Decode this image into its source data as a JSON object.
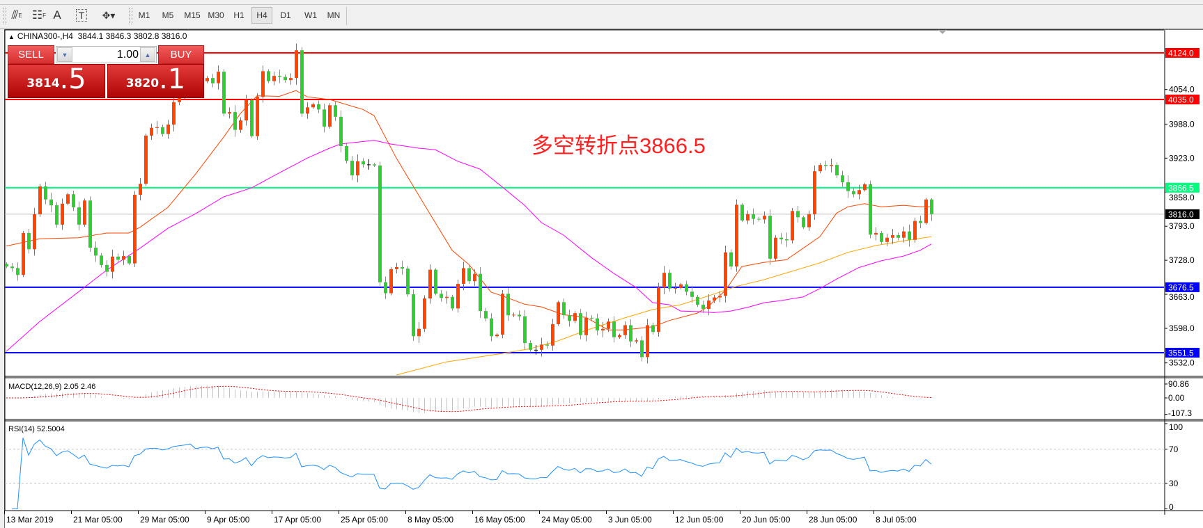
{
  "toolbar": {
    "tools": [
      {
        "icon": "fibonacci-expansion-icon",
        "glyph": "⫻",
        "sub": "E"
      },
      {
        "icon": "fibonacci-fan-icon",
        "glyph": "☷",
        "sub": "F"
      },
      {
        "icon": "text-icon",
        "glyph": "A",
        "sub": ""
      },
      {
        "icon": "text-label-icon",
        "glyph": "T",
        "sub": ""
      },
      {
        "icon": "arrows-dropdown-icon",
        "glyph": "✥▾",
        "sub": ""
      }
    ],
    "timeframes": [
      "M1",
      "M5",
      "M15",
      "M30",
      "H1",
      "H4",
      "D1",
      "W1",
      "MN"
    ],
    "active_timeframe": "H4"
  },
  "chart": {
    "symbol_line": "CHINA300-,H4  3844.1 3846.3 3802.8 3816.0"
  },
  "trade_panel": {
    "sell_label": "SELL",
    "buy_label": "BUY",
    "volume": "1.00",
    "sell_price_main": "3814",
    "sell_price_frac": ".5",
    "buy_price_main": "3820",
    "buy_price_frac": ".1"
  },
  "annotation": "多空转折点3866.5",
  "chart_data": {
    "type": "candlestick",
    "symbol": "CHINA300-",
    "timeframe": "H4",
    "colors": {
      "up": "#ff4500",
      "down": "#32cd32",
      "unchanged": "#000000"
    },
    "closes": [
      3716,
      3713,
      3700,
      3780,
      3749,
      3816,
      3869,
      3844,
      3833,
      3796,
      3836,
      3854,
      3829,
      3796,
      3842,
      3752,
      3737,
      3719,
      3706,
      3735,
      3729,
      3736,
      3722,
      3853,
      3874,
      3966,
      3981,
      3982,
      3969,
      3987,
      4030,
      4045,
      4060,
      4080,
      4050,
      4070,
      4076,
      4066,
      4088,
      4008,
      4011,
      3977,
      3995,
      4034,
      3965,
      4040,
      4089,
      4070,
      4080,
      4078,
      4072,
      4076,
      4129,
      4008,
      4020,
      4026,
      4016,
      3983,
      4024,
      4002,
      3946,
      3918,
      3890,
      3917,
      3911,
      3911,
      3909,
      3686,
      3665,
      3711,
      3715,
      3712,
      3663,
      3583,
      3597,
      3655,
      3710,
      3664,
      3656,
      3658,
      3636,
      3683,
      3713,
      3688,
      3702,
      3631,
      3617,
      3583,
      3586,
      3664,
      3623,
      3624,
      3621,
      3570,
      3557,
      3557,
      3567,
      3565,
      3606,
      3648,
      3623,
      3612,
      3627,
      3585,
      3618,
      3617,
      3594,
      3597,
      3611,
      3581,
      3585,
      3604,
      3573,
      3575,
      3543,
      3604,
      3591,
      3676,
      3704,
      3674,
      3675,
      3682,
      3668,
      3658,
      3643,
      3635,
      3651,
      3657,
      3660,
      3743,
      3716,
      3834,
      3804,
      3816,
      3807,
      3806,
      3813,
      3731,
      3771,
      3768,
      3766,
      3822,
      3810,
      3791,
      3816,
      3898,
      3910,
      3908,
      3910,
      3890,
      3877,
      3860,
      3854,
      3862,
      3873,
      3777,
      3780,
      3763,
      3771,
      3776,
      3771,
      3783,
      3767,
      3803,
      3799,
      3844,
      3816
    ],
    "last_bar": {
      "open": 3844.1,
      "high": 3846.3,
      "low": 3802.8,
      "close": 3816.0
    },
    "moving_averages": [
      {
        "color": "#ff4500",
        "points": [
          [
            0,
            3755
          ],
          [
            6,
            3769
          ],
          [
            13,
            3771
          ],
          [
            18,
            3780
          ],
          [
            22,
            3780
          ],
          [
            24,
            3791
          ],
          [
            29,
            3829
          ],
          [
            34,
            3893
          ],
          [
            39,
            3963
          ],
          [
            42,
            4008
          ],
          [
            45,
            4042
          ],
          [
            49,
            4041
          ],
          [
            52,
            4052
          ],
          [
            54,
            4040
          ],
          [
            58,
            4035
          ],
          [
            64,
            4016
          ],
          [
            66,
            4004
          ],
          [
            70,
            3923
          ],
          [
            76,
            3817
          ],
          [
            80,
            3747
          ],
          [
            83,
            3720
          ],
          [
            87,
            3667
          ],
          [
            89,
            3660
          ],
          [
            93,
            3644
          ],
          [
            96,
            3639
          ],
          [
            100,
            3624
          ],
          [
            104,
            3619
          ],
          [
            108,
            3595
          ],
          [
            111,
            3595
          ],
          [
            116,
            3601
          ],
          [
            119,
            3613
          ],
          [
            124,
            3627
          ],
          [
            126,
            3640
          ],
          [
            129,
            3670
          ],
          [
            132,
            3716
          ],
          [
            136,
            3724
          ],
          [
            140,
            3729
          ],
          [
            143,
            3751
          ],
          [
            146,
            3773
          ],
          [
            149,
            3818
          ],
          [
            151,
            3830
          ],
          [
            154,
            3836
          ],
          [
            157,
            3830
          ],
          [
            161,
            3833
          ],
          [
            164,
            3830
          ],
          [
            166,
            3830
          ]
        ]
      },
      {
        "color": "#ff00ff",
        "points": [
          [
            0,
            3554
          ],
          [
            6,
            3611
          ],
          [
            13,
            3668
          ],
          [
            18,
            3709
          ],
          [
            24,
            3751
          ],
          [
            29,
            3789
          ],
          [
            34,
            3817
          ],
          [
            39,
            3849
          ],
          [
            44,
            3866
          ],
          [
            49,
            3895
          ],
          [
            54,
            3923
          ],
          [
            58,
            3942
          ],
          [
            60,
            3950
          ],
          [
            66,
            3957
          ],
          [
            69,
            3950
          ],
          [
            74,
            3942
          ],
          [
            77,
            3939
          ],
          [
            81,
            3917
          ],
          [
            85,
            3902
          ],
          [
            89,
            3868
          ],
          [
            93,
            3833
          ],
          [
            96,
            3800
          ],
          [
            100,
            3776
          ],
          [
            105,
            3733
          ],
          [
            109,
            3703
          ],
          [
            113,
            3676
          ],
          [
            116,
            3647
          ],
          [
            119,
            3643
          ],
          [
            121,
            3631
          ],
          [
            124,
            3630
          ],
          [
            127,
            3628
          ],
          [
            130,
            3631
          ],
          [
            133,
            3638
          ],
          [
            136,
            3647
          ],
          [
            139,
            3651
          ],
          [
            143,
            3658
          ],
          [
            146,
            3674
          ],
          [
            149,
            3692
          ],
          [
            153,
            3714
          ],
          [
            157,
            3727
          ],
          [
            161,
            3736
          ],
          [
            164,
            3747
          ],
          [
            166,
            3759
          ]
        ]
      },
      {
        "color": "#ffa500",
        "points": [
          [
            70,
            3509
          ],
          [
            79,
            3534
          ],
          [
            89,
            3550
          ],
          [
            94,
            3559
          ],
          [
            99,
            3574
          ],
          [
            104,
            3594
          ],
          [
            111,
            3618
          ],
          [
            116,
            3634
          ],
          [
            121,
            3643
          ],
          [
            126,
            3660
          ],
          [
            131,
            3678
          ],
          [
            136,
            3691
          ],
          [
            141,
            3707
          ],
          [
            146,
            3723
          ],
          [
            151,
            3743
          ],
          [
            156,
            3756
          ],
          [
            161,
            3765
          ],
          [
            166,
            3773
          ]
        ]
      }
    ],
    "levels": [
      {
        "price": 4124.0,
        "label": "4124.0",
        "color": "#ff0000"
      },
      {
        "price": 4035.0,
        "label": "4035.0",
        "color": "#ff0000"
      },
      {
        "price": 3866.5,
        "label": "3866.5",
        "color": "#00ff7f"
      },
      {
        "price": 3676.5,
        "label": "3676.5",
        "color": "#0000ff"
      },
      {
        "price": 3551.5,
        "label": "3551.5",
        "color": "#0000ff"
      }
    ],
    "current_price": {
      "price": 3816.0,
      "label": "3816.0",
      "color": "#000000",
      "line_color": "#c0c0c0"
    },
    "price_axis": {
      "ticks": [
        4054.0,
        3988.0,
        3923.0,
        3858.0,
        3793.0,
        3728.0,
        3663.0,
        3598.0,
        3532.0
      ],
      "tick_labels": [
        "4054.0",
        "3988.0",
        "3923.0",
        "3858.0",
        "3793.0",
        "3728.0",
        "3663.0",
        "3598.0",
        "3532.0"
      ]
    },
    "time_axis": {
      "labels": [
        "13 Mar 2019",
        "21 Mar 05:00",
        "29 Mar 05:00",
        "9 Apr 05:00",
        "17 Apr 05:00",
        "25 Apr 05:00",
        "8 May 05:00",
        "16 May 05:00",
        "24 May 05:00",
        "3 Jun 05:00",
        "12 Jun 05:00",
        "20 Jun 05:00",
        "28 Jun 05:00",
        "8 Jul 05:00"
      ]
    },
    "macd": {
      "label": "MACD(12,26,9) 2.05 2.46",
      "fast": 12,
      "slow": 26,
      "signal": 9,
      "axis_values": [
        90.86,
        0.0,
        -107.3
      ],
      "axis_labels": [
        "90.86",
        "0.00",
        "-107.3"
      ],
      "histogram_color": "#c0c0c0",
      "signal_color": "#ff0000"
    },
    "rsi": {
      "label": "RSI(14) 52.5004",
      "period": 14,
      "levels": [
        70,
        30
      ],
      "axis_values": [
        100,
        70,
        30,
        0
      ],
      "axis_labels": [
        "100",
        "70",
        "30",
        "0"
      ],
      "color": "#1e90ff"
    }
  }
}
